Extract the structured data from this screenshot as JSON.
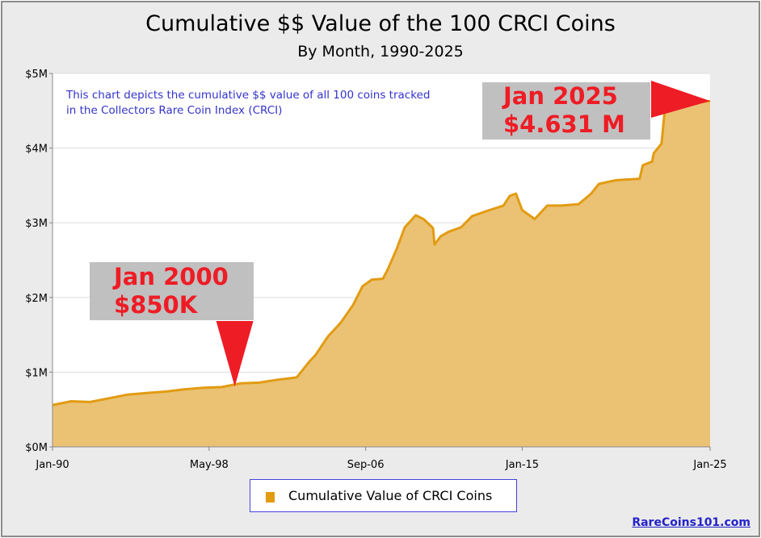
{
  "chart_data": {
    "type": "area",
    "title": "Cumulative $$ Value of the 100 CRCI Coins",
    "subtitle": "By Month, 1990-2025",
    "note": [
      "This chart depicts the cumulative $$ value of all 100 coins tracked",
      "in the Collectors Rare Coin Index (CRCI)"
    ],
    "ylim": [
      0,
      5
    ],
    "y_unit": "$M",
    "y_ticks": [
      "$0M",
      "$1M",
      "$2M",
      "$3M",
      "$4M",
      "$5M"
    ],
    "x_range": [
      "1990-01",
      "2025-01"
    ],
    "x_ticks": [
      {
        "date": "1990-01",
        "label": "Jan-90"
      },
      {
        "date": "1998-05",
        "label": "May-98"
      },
      {
        "date": "2006-09",
        "label": "Sep-06"
      },
      {
        "date": "2015-01",
        "label": "Jan-15"
      },
      {
        "date": "2025-01",
        "label": "Jan-25"
      }
    ],
    "grid": "horizontal",
    "legend_position": "bottom",
    "series": [
      {
        "name": "Cumulative Value of CRCI Coins",
        "color": "#e29b12",
        "fill": "#ebc274",
        "points": [
          [
            "1990-01",
            0.56
          ],
          [
            "1991-01",
            0.61
          ],
          [
            "1992-01",
            0.6
          ],
          [
            "1993-01",
            0.65
          ],
          [
            "1994-01",
            0.7
          ],
          [
            "1995-01",
            0.72
          ],
          [
            "1996-01",
            0.74
          ],
          [
            "1997-01",
            0.77
          ],
          [
            "1998-01",
            0.79
          ],
          [
            "1999-01",
            0.8
          ],
          [
            "2000-01",
            0.85
          ],
          [
            "2001-01",
            0.86
          ],
          [
            "2002-01",
            0.9
          ],
          [
            "2003-01",
            0.93
          ],
          [
            "2003-09",
            1.14
          ],
          [
            "2004-01",
            1.23
          ],
          [
            "2004-09",
            1.48
          ],
          [
            "2005-05",
            1.66
          ],
          [
            "2006-01",
            1.9
          ],
          [
            "2006-07",
            2.15
          ],
          [
            "2007-01",
            2.24
          ],
          [
            "2007-08",
            2.25
          ],
          [
            "2007-11",
            2.37
          ],
          [
            "2008-05",
            2.66
          ],
          [
            "2008-10",
            2.94
          ],
          [
            "2009-05",
            3.1
          ],
          [
            "2009-10",
            3.05
          ],
          [
            "2010-04",
            2.93
          ],
          [
            "2010-05",
            2.71
          ],
          [
            "2010-09",
            2.82
          ],
          [
            "2011-02",
            2.88
          ],
          [
            "2011-10",
            2.94
          ],
          [
            "2012-05",
            3.09
          ],
          [
            "2013-04",
            3.17
          ],
          [
            "2014-01",
            3.23
          ],
          [
            "2014-05",
            3.36
          ],
          [
            "2014-09",
            3.39
          ],
          [
            "2015-01",
            3.17
          ],
          [
            "2015-09",
            3.05
          ],
          [
            "2016-05",
            3.23
          ],
          [
            "2017-02",
            3.23
          ],
          [
            "2018-01",
            3.25
          ],
          [
            "2018-09",
            3.39
          ],
          [
            "2019-02",
            3.52
          ],
          [
            "2020-01",
            3.57
          ],
          [
            "2021-04",
            3.59
          ],
          [
            "2021-06",
            3.77
          ],
          [
            "2021-12",
            3.82
          ],
          [
            "2022-01",
            3.93
          ],
          [
            "2022-06",
            4.06
          ],
          [
            "2022-08",
            4.5
          ],
          [
            "2023-01",
            4.56
          ],
          [
            "2025-01",
            4.631
          ]
        ]
      }
    ],
    "annotations": [
      {
        "date": "2000-01",
        "value": 0.85,
        "lines": [
          "Jan 2000",
          "$850K"
        ],
        "text_color": "#ee1c25"
      },
      {
        "date": "2025-01",
        "value": 4.631,
        "lines": [
          "Jan 2025",
          "$4.631 M"
        ],
        "text_color": "#ee1c25"
      }
    ]
  },
  "footer": {
    "credit": "RareCoins101.com"
  }
}
